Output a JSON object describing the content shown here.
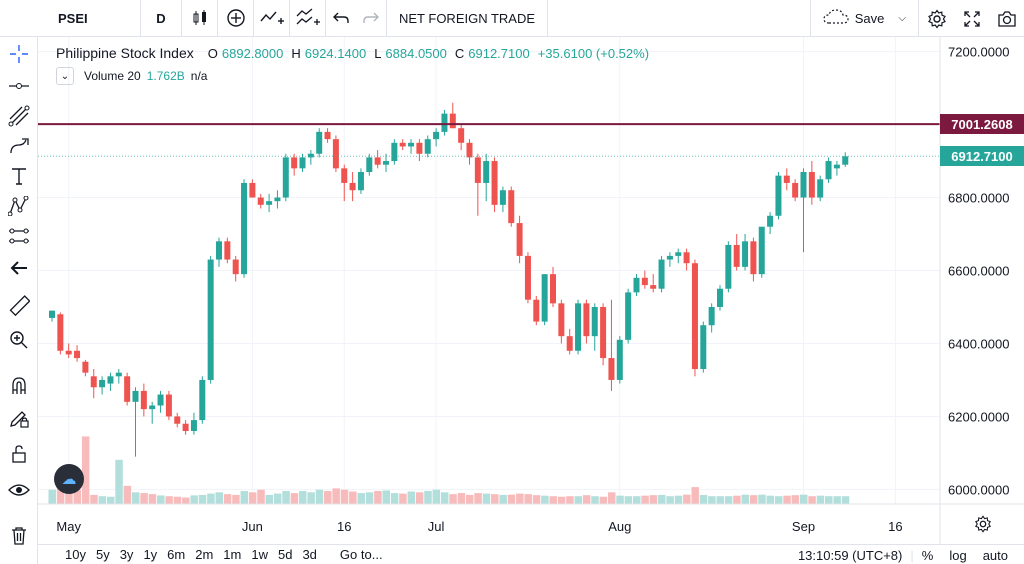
{
  "toolbar": {
    "symbol": "PSEI",
    "interval": "D",
    "indicator_label": "NET FOREIGN TRADE",
    "save_label": "Save",
    "icons": [
      "candles-icon",
      "add-indicator-icon",
      "compare-icon",
      "templates-icon",
      "undo-icon",
      "redo-icon",
      "cloud-icon",
      "settings-icon",
      "fullscreen-icon",
      "camera-icon"
    ]
  },
  "left_tools": [
    "crosshair-icon",
    "trendline-icon",
    "fib-icon",
    "brush-icon",
    "text-icon",
    "pattern-icon",
    "forecast-icon",
    "back-arrow-icon",
    "ruler-icon",
    "zoom-icon",
    "magnet-icon",
    "lock-drawing-icon",
    "lock-icon",
    "eye-icon",
    "trash-icon"
  ],
  "legend": {
    "title": "Philippine Stock Index",
    "o_key": "O",
    "o_val": "6892.8000",
    "h_key": "H",
    "h_val": "6924.1400",
    "l_key": "L",
    "l_val": "6884.0500",
    "c_key": "C",
    "c_val": "6912.7100",
    "change": "+35.6100 (+0.52%)",
    "volume_label": "Volume 20",
    "volume_val": "1.762B",
    "volume_na": "n/a"
  },
  "price_labels": {
    "line_value": "7001.2608",
    "last_value": "6912.7100",
    "line_color": "#7b1a3e",
    "last_color": "#26a69a"
  },
  "bottom": {
    "ranges": [
      "10y",
      "5y",
      "3y",
      "1y",
      "6m",
      "2m",
      "1m",
      "1w",
      "5d",
      "3d"
    ],
    "goto": "Go to...",
    "time": "13:10:59 (UTC+8)",
    "pct": "%",
    "log": "log",
    "auto": "auto"
  },
  "chart_data": {
    "type": "candlestick",
    "y_ticks": [
      "7200.0000",
      "7000.0000",
      "6800.0000",
      "6600.0000",
      "6400.0000",
      "6200.0000",
      "6000.0000"
    ],
    "y_tick_values": [
      7200,
      7000,
      6800,
      6600,
      6400,
      6200,
      6000
    ],
    "ylim": [
      5960,
      7240
    ],
    "x_ticks": [
      "May",
      "Jun",
      "16",
      "Jul",
      "Aug",
      "Sep",
      "16"
    ],
    "x_tick_bar_index": [
      2,
      24,
      35,
      46,
      68,
      90,
      101
    ],
    "horizontal_line": 7001.26,
    "colors": {
      "up": "#26a69a",
      "down": "#ef5350",
      "up_vol": "#b2dfdb",
      "down_vol": "#f8bbbb"
    },
    "ohlc": [
      [
        6470,
        6490,
        6460,
        6490
      ],
      [
        6480,
        6485,
        6370,
        6380
      ],
      [
        6380,
        6400,
        6360,
        6370
      ],
      [
        6380,
        6395,
        6350,
        6360
      ],
      [
        6350,
        6355,
        6310,
        6320
      ],
      [
        6310,
        6330,
        6250,
        6280
      ],
      [
        6280,
        6310,
        6260,
        6300
      ],
      [
        6290,
        6320,
        6270,
        6310
      ],
      [
        6310,
        6330,
        6290,
        6320
      ],
      [
        6310,
        6320,
        6230,
        6240
      ],
      [
        6240,
        6280,
        6090,
        6270
      ],
      [
        6270,
        6290,
        6200,
        6220
      ],
      [
        6220,
        6240,
        6180,
        6230
      ],
      [
        6230,
        6270,
        6210,
        6260
      ],
      [
        6260,
        6270,
        6190,
        6200
      ],
      [
        6200,
        6210,
        6170,
        6180
      ],
      [
        6180,
        6190,
        6150,
        6160
      ],
      [
        6160,
        6210,
        6150,
        6190
      ],
      [
        6190,
        6310,
        6180,
        6300
      ],
      [
        6300,
        6640,
        6290,
        6630
      ],
      [
        6630,
        6690,
        6610,
        6680
      ],
      [
        6680,
        6690,
        6620,
        6630
      ],
      [
        6630,
        6640,
        6570,
        6590
      ],
      [
        6590,
        6850,
        6580,
        6840
      ],
      [
        6840,
        6850,
        6800,
        6800
      ],
      [
        6800,
        6810,
        6770,
        6780
      ],
      [
        6780,
        6810,
        6760,
        6790
      ],
      [
        6790,
        6820,
        6770,
        6800
      ],
      [
        6800,
        6920,
        6790,
        6910
      ],
      [
        6910,
        6920,
        6860,
        6880
      ],
      [
        6880,
        6920,
        6870,
        6910
      ],
      [
        6910,
        6930,
        6890,
        6920
      ],
      [
        6920,
        6990,
        6910,
        6980
      ],
      [
        6980,
        6990,
        6950,
        6960
      ],
      [
        6960,
        6970,
        6870,
        6880
      ],
      [
        6880,
        6890,
        6790,
        6840
      ],
      [
        6840,
        6870,
        6790,
        6820
      ],
      [
        6820,
        6880,
        6810,
        6870
      ],
      [
        6870,
        6920,
        6860,
        6910
      ],
      [
        6910,
        6930,
        6880,
        6890
      ],
      [
        6890,
        6920,
        6870,
        6900
      ],
      [
        6900,
        6960,
        6890,
        6950
      ],
      [
        6950,
        6960,
        6930,
        6940
      ],
      [
        6940,
        6960,
        6920,
        6950
      ],
      [
        6950,
        6960,
        6900,
        6920
      ],
      [
        6920,
        6970,
        6910,
        6960
      ],
      [
        6960,
        6990,
        6940,
        6980
      ],
      [
        6980,
        7040,
        6970,
        7030
      ],
      [
        7030,
        7060,
        6990,
        6990
      ],
      [
        6990,
        7000,
        6930,
        6950
      ],
      [
        6950,
        6960,
        6890,
        6910
      ],
      [
        6910,
        6920,
        6750,
        6840
      ],
      [
        6840,
        6920,
        6790,
        6900
      ],
      [
        6900,
        6910,
        6760,
        6780
      ],
      [
        6780,
        6830,
        6760,
        6820
      ],
      [
        6820,
        6830,
        6720,
        6730
      ],
      [
        6730,
        6750,
        6620,
        6640
      ],
      [
        6640,
        6650,
        6510,
        6520
      ],
      [
        6520,
        6530,
        6450,
        6460
      ],
      [
        6460,
        6590,
        6450,
        6590
      ],
      [
        6590,
        6610,
        6500,
        6510
      ],
      [
        6510,
        6520,
        6400,
        6420
      ],
      [
        6420,
        6440,
        6370,
        6380
      ],
      [
        6380,
        6520,
        6370,
        6510
      ],
      [
        6510,
        6520,
        6400,
        6420
      ],
      [
        6420,
        6510,
        6380,
        6500
      ],
      [
        6500,
        6510,
        6340,
        6360
      ],
      [
        6360,
        6520,
        6270,
        6300
      ],
      [
        6300,
        6420,
        6290,
        6410
      ],
      [
        6410,
        6550,
        6400,
        6540
      ],
      [
        6540,
        6590,
        6530,
        6580
      ],
      [
        6580,
        6600,
        6550,
        6560
      ],
      [
        6560,
        6590,
        6540,
        6550
      ],
      [
        6550,
        6640,
        6540,
        6630
      ],
      [
        6630,
        6650,
        6610,
        6640
      ],
      [
        6640,
        6660,
        6620,
        6650
      ],
      [
        6650,
        6660,
        6600,
        6620
      ],
      [
        6620,
        6630,
        6310,
        6330
      ],
      [
        6330,
        6460,
        6320,
        6450
      ],
      [
        6450,
        6510,
        6430,
        6500
      ],
      [
        6500,
        6560,
        6490,
        6550
      ],
      [
        6550,
        6680,
        6540,
        6670
      ],
      [
        6670,
        6700,
        6600,
        6610
      ],
      [
        6610,
        6700,
        6600,
        6680
      ],
      [
        6680,
        6690,
        6570,
        6590
      ],
      [
        6590,
        6720,
        6580,
        6720
      ],
      [
        6720,
        6760,
        6700,
        6750
      ],
      [
        6750,
        6870,
        6740,
        6860
      ],
      [
        6860,
        6880,
        6820,
        6840
      ],
      [
        6840,
        6850,
        6790,
        6800
      ],
      [
        6800,
        6880,
        6650,
        6870
      ],
      [
        6870,
        6900,
        6780,
        6800
      ],
      [
        6800,
        6860,
        6790,
        6850
      ],
      [
        6850,
        6910,
        6840,
        6900
      ],
      [
        6880,
        6900,
        6860,
        6890
      ],
      [
        6890,
        6924,
        6884,
        6913
      ]
    ],
    "volume_up": [
      true,
      false,
      false,
      false,
      false,
      false,
      true,
      true,
      true,
      false,
      true,
      false,
      false,
      true,
      false,
      false,
      false,
      true,
      true,
      true,
      true,
      false,
      false,
      true,
      false,
      false,
      true,
      true,
      true,
      false,
      true,
      true,
      true,
      false,
      false,
      false,
      false,
      true,
      true,
      false,
      true,
      true,
      false,
      true,
      false,
      true,
      true,
      true,
      false,
      false,
      false,
      false,
      true,
      false,
      true,
      false,
      false,
      false,
      false,
      true,
      false,
      false,
      false,
      true,
      false,
      true,
      false,
      false,
      true,
      true,
      true,
      false,
      false,
      true,
      true,
      true,
      false,
      false,
      true,
      true,
      true,
      true,
      false,
      true,
      false,
      true,
      true,
      true,
      false,
      false,
      true,
      false,
      true,
      true,
      true,
      true
    ],
    "volume_rel": [
      0.55,
      0.8,
      0.45,
      0.55,
      2.6,
      0.35,
      0.3,
      0.28,
      1.7,
      0.7,
      0.45,
      0.42,
      0.38,
      0.33,
      0.3,
      0.28,
      0.25,
      0.33,
      0.35,
      0.4,
      0.45,
      0.38,
      0.35,
      0.5,
      0.45,
      0.55,
      0.35,
      0.4,
      0.5,
      0.42,
      0.5,
      0.45,
      0.55,
      0.5,
      0.6,
      0.55,
      0.48,
      0.42,
      0.45,
      0.5,
      0.52,
      0.42,
      0.4,
      0.48,
      0.45,
      0.5,
      0.55,
      0.45,
      0.38,
      0.42,
      0.35,
      0.42,
      0.4,
      0.38,
      0.35,
      0.36,
      0.4,
      0.38,
      0.34,
      0.32,
      0.3,
      0.28,
      0.3,
      0.3,
      0.34,
      0.3,
      0.28,
      0.45,
      0.32,
      0.3,
      0.3,
      0.32,
      0.34,
      0.35,
      0.3,
      0.32,
      0.36,
      0.65,
      0.35,
      0.3,
      0.3,
      0.3,
      0.32,
      0.36,
      0.34,
      0.36,
      0.32,
      0.3,
      0.32,
      0.34,
      0.36,
      0.3,
      0.32,
      0.3,
      0.3,
      0.3
    ]
  }
}
